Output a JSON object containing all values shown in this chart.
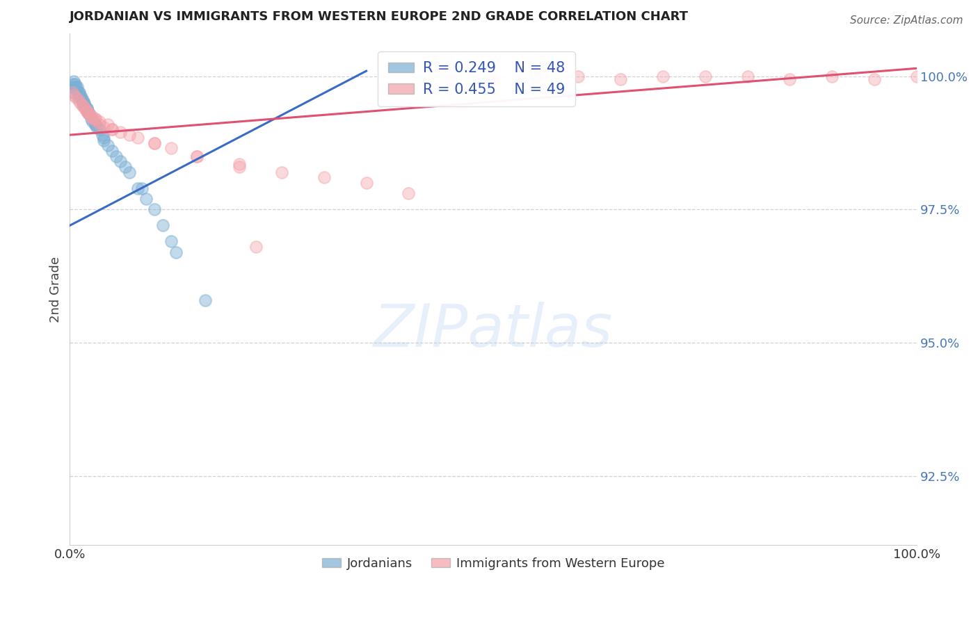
{
  "title": "JORDANIAN VS IMMIGRANTS FROM WESTERN EUROPE 2ND GRADE CORRELATION CHART",
  "source_text": "Source: ZipAtlas.com",
  "ylabel": "2nd Grade",
  "watermark": "ZIPatlas",
  "xlim": [
    0.0,
    100.0
  ],
  "ylim": [
    91.2,
    100.8
  ],
  "yticks": [
    92.5,
    95.0,
    97.5,
    100.0
  ],
  "xticks": [
    0.0,
    100.0
  ],
  "xticklabels": [
    "0.0%",
    "100.0%"
  ],
  "yticklabels": [
    "92.5%",
    "95.0%",
    "97.5%",
    "100.0%"
  ],
  "blue_R": 0.249,
  "blue_N": 48,
  "pink_R": 0.455,
  "pink_N": 49,
  "blue_color": "#7BAFD4",
  "pink_color": "#F4A0A8",
  "blue_line_color": "#3A6BC4",
  "pink_line_color": "#E05070",
  "legend_label_blue": "Jordanians",
  "legend_label_pink": "Immigrants from Western Europe",
  "blue_line_x0": 0.0,
  "blue_line_y0": 97.2,
  "blue_line_x1": 35.0,
  "blue_line_y1": 100.1,
  "pink_line_x0": 0.0,
  "pink_line_y0": 98.9,
  "pink_line_x1": 100.0,
  "pink_line_y1": 100.15,
  "blue_x": [
    0.3,
    0.4,
    0.5,
    0.6,
    0.7,
    0.8,
    0.9,
    1.0,
    1.1,
    1.2,
    1.3,
    1.4,
    1.5,
    1.6,
    1.7,
    1.8,
    1.9,
    2.0,
    2.1,
    2.2,
    2.3,
    2.5,
    2.7,
    3.0,
    3.2,
    3.5,
    3.8,
    4.0,
    4.5,
    5.0,
    5.5,
    6.0,
    7.0,
    8.0,
    9.0,
    10.0,
    11.0,
    12.0,
    1.0,
    1.5,
    2.0,
    3.0,
    4.0,
    0.5,
    6.5,
    8.5,
    12.5,
    16.0
  ],
  "blue_y": [
    99.8,
    99.85,
    99.9,
    99.85,
    99.8,
    99.75,
    99.8,
    99.7,
    99.7,
    99.65,
    99.6,
    99.6,
    99.55,
    99.5,
    99.5,
    99.45,
    99.4,
    99.4,
    99.35,
    99.3,
    99.3,
    99.2,
    99.15,
    99.1,
    99.05,
    99.0,
    98.9,
    98.85,
    98.7,
    98.6,
    98.5,
    98.4,
    98.2,
    97.9,
    97.7,
    97.5,
    97.2,
    96.9,
    99.6,
    99.5,
    99.4,
    99.1,
    98.8,
    99.7,
    98.3,
    97.9,
    96.7,
    95.8
  ],
  "pink_x": [
    0.3,
    0.5,
    0.7,
    1.0,
    1.2,
    1.5,
    1.8,
    2.0,
    2.2,
    2.5,
    2.8,
    3.0,
    3.5,
    4.0,
    5.0,
    6.0,
    8.0,
    10.0,
    12.0,
    15.0,
    20.0,
    25.0,
    30.0,
    35.0,
    40.0,
    45.0,
    50.0,
    55.0,
    60.0,
    65.0,
    70.0,
    75.0,
    80.0,
    85.0,
    90.0,
    95.0,
    100.0,
    1.5,
    2.5,
    3.5,
    5.0,
    7.0,
    10.0,
    15.0,
    20.0,
    2.0,
    3.0,
    4.5,
    22.0
  ],
  "pink_y": [
    99.7,
    99.65,
    99.6,
    99.55,
    99.5,
    99.45,
    99.4,
    99.35,
    99.3,
    99.25,
    99.2,
    99.2,
    99.1,
    99.05,
    99.0,
    98.95,
    98.85,
    98.75,
    98.65,
    98.5,
    98.3,
    98.2,
    98.1,
    98.0,
    97.8,
    99.95,
    99.95,
    100.0,
    100.0,
    99.95,
    100.0,
    100.0,
    100.0,
    99.95,
    100.0,
    99.95,
    100.0,
    99.45,
    99.25,
    99.15,
    99.0,
    98.9,
    98.75,
    98.5,
    98.35,
    99.35,
    99.2,
    99.1,
    96.8
  ]
}
